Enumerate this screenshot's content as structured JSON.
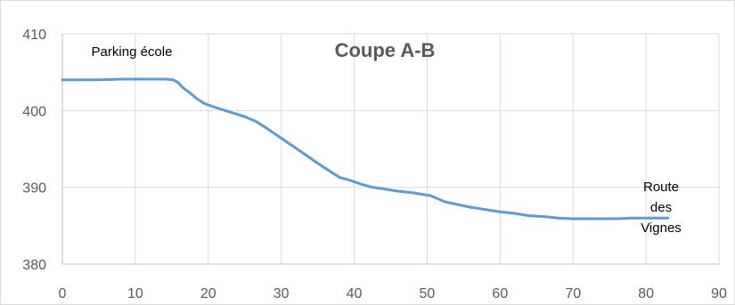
{
  "chart_data": {
    "type": "line",
    "title": "Coupe A-B",
    "xlabel": "",
    "ylabel": "",
    "xlim": [
      0,
      90
    ],
    "ylim": [
      380,
      410
    ],
    "x_ticks": [
      0,
      10,
      20,
      30,
      40,
      50,
      60,
      70,
      80,
      90
    ],
    "y_ticks": [
      380,
      390,
      400,
      410
    ],
    "grid": true,
    "legend": "none",
    "colors": {
      "series": "#5b9bd5",
      "grid": "#d9d9d9",
      "axis": "#bfbfbf",
      "text": "#595959"
    },
    "series": [
      {
        "x": [
          0,
          2,
          5,
          8,
          10,
          12,
          14,
          15.2,
          15.8,
          16.5,
          17.5,
          18.5,
          19.5,
          21,
          23,
          25,
          26.5,
          28,
          30,
          32,
          34,
          36,
          38,
          39.5,
          41,
          42.5,
          44,
          46,
          48,
          50.5,
          51.5,
          52.5,
          54,
          56,
          58,
          60,
          62,
          64,
          66,
          68,
          70,
          72,
          74,
          76,
          78,
          80,
          82,
          83
        ],
        "y": [
          404,
          404,
          404,
          404.1,
          404.1,
          404.1,
          404.1,
          404.0,
          403.7,
          403.0,
          402.3,
          401.5,
          400.9,
          400.4,
          399.8,
          399.2,
          398.6,
          397.7,
          396.4,
          395.1,
          393.8,
          392.5,
          391.3,
          390.9,
          390.4,
          390.0,
          389.8,
          389.5,
          389.3,
          388.9,
          388.5,
          388.1,
          387.8,
          387.4,
          387.1,
          386.8,
          386.6,
          386.3,
          386.2,
          386.0,
          385.9,
          385.9,
          385.9,
          385.9,
          386.0,
          386.0,
          386.0,
          386.0
        ]
      }
    ],
    "annotations": [
      {
        "text_lines": [
          "Parking école"
        ]
      },
      {
        "text_lines": [
          "Route",
          "des",
          "Vignes"
        ]
      }
    ]
  }
}
